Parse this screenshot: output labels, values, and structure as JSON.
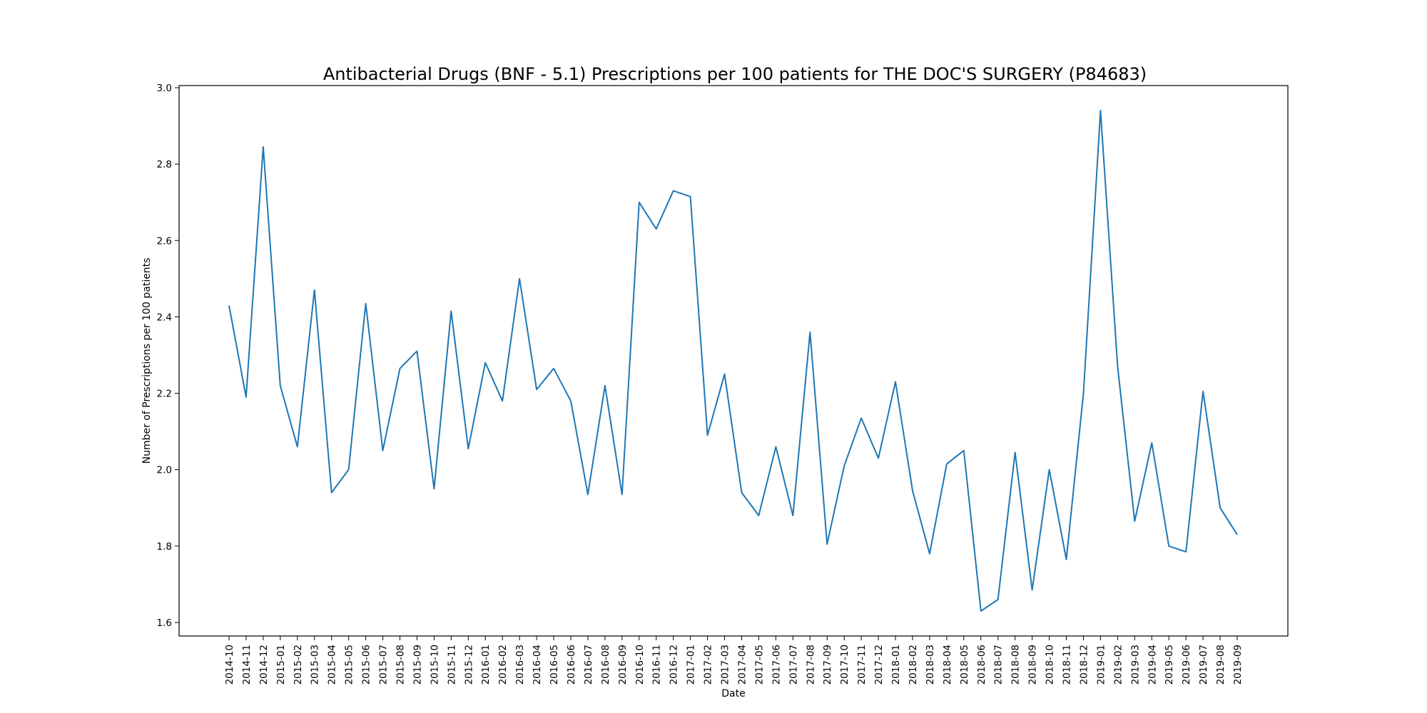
{
  "chart_data": {
    "type": "line",
    "title": "Antibacterial Drugs (BNF - 5.1) Prescriptions per 100 patients for THE DOC'S SURGERY (P84683)",
    "xlabel": "Date",
    "ylabel": "Number of Prescriptions per 100 patients",
    "ylim": [
      1.56,
      3.0
    ],
    "yticks": [
      "1.6",
      "1.8",
      "2.0",
      "2.2",
      "2.4",
      "2.6",
      "2.8",
      "3.0"
    ],
    "grid": false,
    "line_color": "#1f77b4",
    "x": [
      "2014-10",
      "2014-11",
      "2014-12",
      "2015-01",
      "2015-02",
      "2015-03",
      "2015-04",
      "2015-05",
      "2015-06",
      "2015-07",
      "2015-08",
      "2015-09",
      "2015-10",
      "2015-11",
      "2015-12",
      "2016-01",
      "2016-02",
      "2016-03",
      "2016-04",
      "2016-05",
      "2016-06",
      "2016-07",
      "2016-08",
      "2016-09",
      "2016-10",
      "2016-11",
      "2016-12",
      "2017-01",
      "2017-02",
      "2017-03",
      "2017-04",
      "2017-05",
      "2017-06",
      "2017-07",
      "2017-08",
      "2017-09",
      "2017-10",
      "2017-11",
      "2017-12",
      "2018-01",
      "2018-02",
      "2018-03",
      "2018-04",
      "2018-05",
      "2018-06",
      "2018-07",
      "2018-08",
      "2018-09",
      "2018-10",
      "2018-11",
      "2018-12",
      "2019-01",
      "2019-02",
      "2019-03",
      "2019-04",
      "2019-05",
      "2019-06",
      "2019-07",
      "2019-08",
      "2019-09"
    ],
    "series": [
      {
        "values": [
          2.43,
          2.19,
          2.845,
          2.22,
          2.06,
          2.47,
          1.94,
          2.0,
          2.435,
          2.05,
          2.265,
          2.31,
          1.95,
          2.415,
          2.055,
          2.28,
          2.18,
          2.5,
          2.21,
          2.265,
          2.18,
          1.935,
          2.22,
          1.935,
          2.7,
          2.63,
          2.73,
          2.715,
          2.09,
          2.25,
          1.94,
          1.88,
          2.06,
          1.88,
          2.36,
          1.805,
          2.01,
          2.135,
          2.03,
          2.23,
          1.945,
          1.78,
          2.015,
          2.05,
          1.63,
          1.66,
          2.045,
          1.685,
          2.0,
          1.765,
          2.2,
          2.94,
          2.27,
          1.865,
          2.07,
          1.8,
          1.785,
          2.205,
          1.9,
          1.83
        ]
      }
    ]
  }
}
